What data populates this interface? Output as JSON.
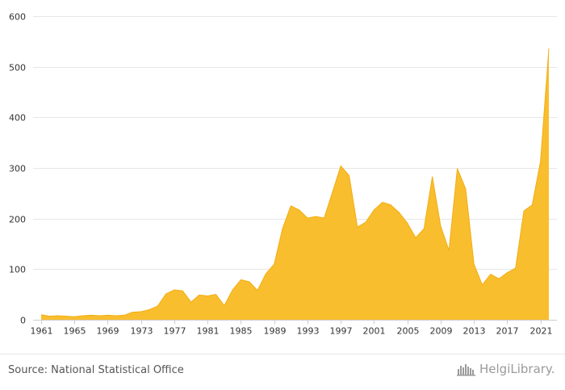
{
  "source_text": "Source: National Statistical Office",
  "logo_text": "HelgiLibrary.",
  "colors": {
    "fill": "#f9be2e",
    "stroke": "#f2ad12",
    "grid": "#e6e6e6",
    "axis": "#cccccc"
  },
  "chart_data": {
    "type": "area",
    "title": "",
    "xlabel": "",
    "ylabel": "",
    "ylim": [
      0,
      600
    ],
    "yticks": [
      0,
      100,
      200,
      300,
      400,
      500,
      600
    ],
    "xticks": [
      1961,
      1965,
      1969,
      1973,
      1977,
      1981,
      1985,
      1989,
      1993,
      1997,
      2001,
      2005,
      2009,
      2013,
      2017,
      2021
    ],
    "grid": true,
    "legend": "none",
    "x": [
      1961,
      1962,
      1963,
      1964,
      1965,
      1966,
      1967,
      1968,
      1969,
      1970,
      1971,
      1972,
      1973,
      1974,
      1975,
      1976,
      1977,
      1978,
      1979,
      1980,
      1981,
      1982,
      1983,
      1984,
      1985,
      1986,
      1987,
      1988,
      1989,
      1990,
      1991,
      1992,
      1993,
      1994,
      1995,
      1996,
      1997,
      1998,
      1999,
      2000,
      2001,
      2002,
      2003,
      2004,
      2005,
      2006,
      2007,
      2008,
      2009,
      2010,
      2011,
      2012,
      2013,
      2014,
      2015,
      2016,
      2017,
      2018,
      2019,
      2020,
      2021,
      2022
    ],
    "values": [
      10,
      7,
      8,
      7,
      6,
      8,
      9,
      8,
      9,
      8,
      9,
      15,
      16,
      20,
      27,
      51,
      59,
      57,
      35,
      49,
      47,
      50,
      28,
      59,
      79,
      75,
      58,
      91,
      110,
      180,
      225,
      217,
      201,
      204,
      201,
      252,
      304,
      285,
      183,
      193,
      217,
      232,
      227,
      212,
      191,
      162,
      180,
      283,
      185,
      137,
      299,
      259,
      110,
      69,
      90,
      81,
      93,
      102,
      215,
      227,
      313,
      536
    ]
  }
}
